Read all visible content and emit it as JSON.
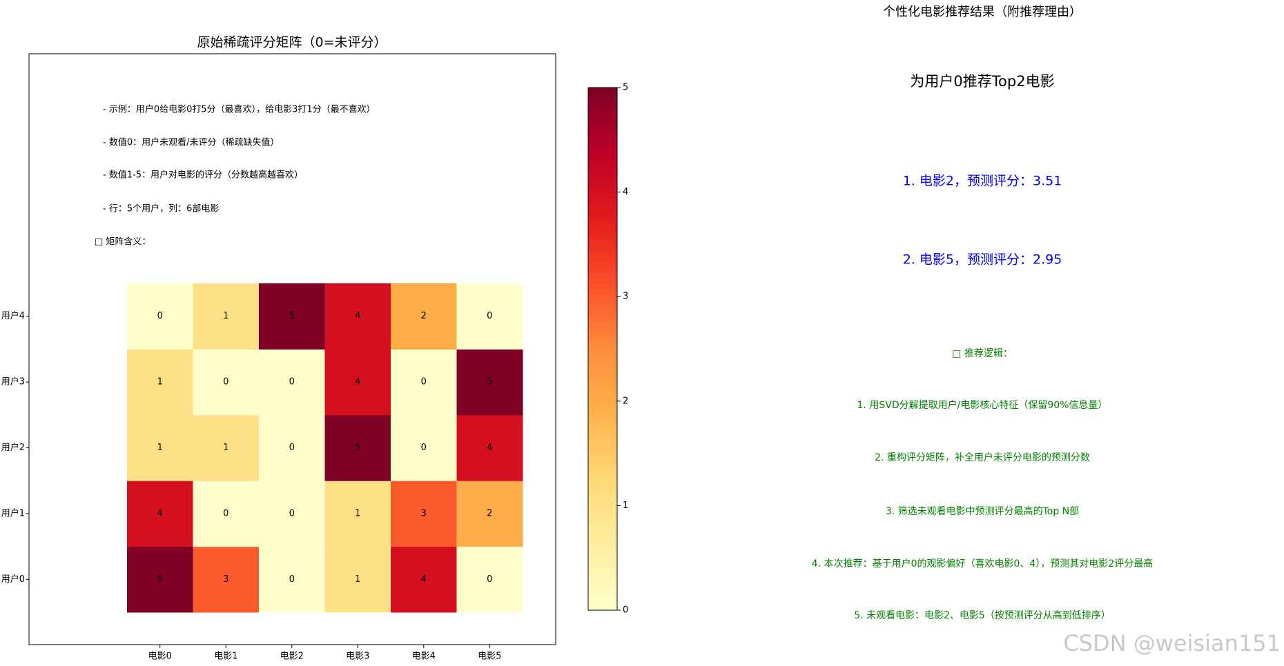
{
  "chart_data": {
    "type": "heatmap",
    "title": "原始稀疏评分矩阵（0=未评分）",
    "x_categories": [
      "电影0",
      "电影1",
      "电影2",
      "电影3",
      "电影4",
      "电影5"
    ],
    "y_categories": [
      "用户0",
      "用户1",
      "用户2",
      "用户3",
      "用户4"
    ],
    "values": [
      [
        5,
        3,
        0,
        1,
        4,
        0
      ],
      [
        4,
        0,
        0,
        1,
        3,
        2
      ],
      [
        1,
        1,
        0,
        5,
        0,
        4
      ],
      [
        1,
        0,
        0,
        4,
        0,
        5
      ],
      [
        0,
        1,
        5,
        4,
        2,
        0
      ]
    ],
    "colormap": "YlOrRd",
    "clim": [
      0,
      5
    ],
    "cticks": [
      0,
      1,
      2,
      3,
      4,
      5
    ],
    "annotations": [
      "- 示例：用户0给电影0打5分（最喜欢），给电影3打1分（最不喜欢）",
      "- 数值0：用户未观看/未评分（稀疏缺失值）",
      "- 数值1-5：用户对电影的评分（分数越高越喜欢）",
      "- 行：5个用户，列：6部电影",
      "□ 矩阵含义："
    ]
  },
  "recommendation_panel": {
    "title": "个性化电影推荐结果（附推荐理由）",
    "heading": "为用户0推荐Top2电影",
    "recommendations": [
      "1. 电影2，预测评分：3.51",
      "2. 电影5，预测评分：2.95"
    ],
    "logic_heading": "□ 推荐逻辑：",
    "logic": [
      "1. 用SVD分解提取用户/电影核心特征（保留90%信息量）",
      "2. 重构评分矩阵，补全用户未评分电影的预测分数",
      "3. 筛选未观看电影中预测评分最高的Top N部",
      "4. 本次推荐：基于用户0的观影偏好（喜欢电影0、4），预测其对电影2评分最高",
      "5. 未观看电影：电影2、电影5（按预测评分从高到低排序）"
    ]
  },
  "watermark": "CSDN @weisian151"
}
